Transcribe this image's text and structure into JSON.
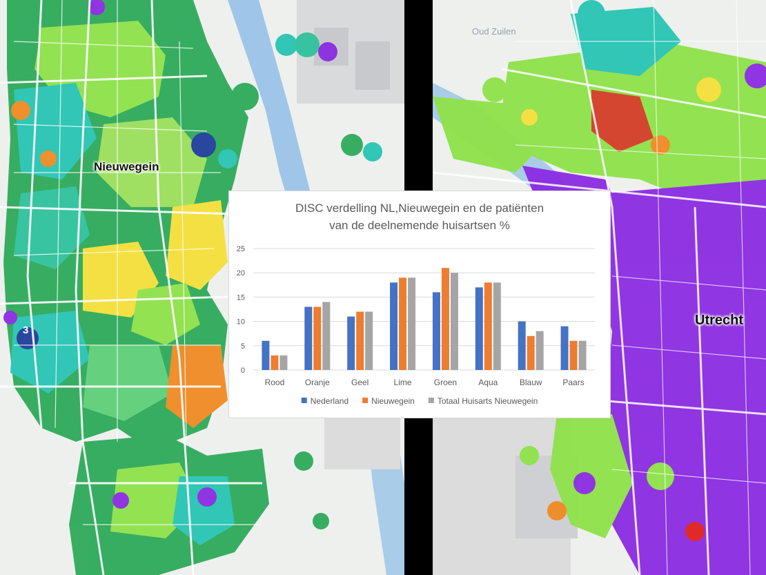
{
  "maps": {
    "left": {
      "city_label": "Nieuwegein",
      "marker_label": "3"
    },
    "right": {
      "city_label": "Utrecht",
      "district_label": "Oud Zuilen"
    }
  },
  "colors": {
    "nederland": "#4472C4",
    "nieuwegein": "#ED7D31",
    "totaal": "#A5A5A5",
    "map_green": "#2EAA5A",
    "map_lime": "#8FE24A",
    "map_aqua": "#27C4B4",
    "map_yellow": "#F5E03A",
    "map_orange": "#F08A24",
    "map_purple": "#8A2BE2",
    "map_red": "#E02020",
    "map_blue": "#1F3F9A"
  },
  "chart_data": {
    "type": "bar",
    "title_line1": "DISC verdelling NL,Nieuwegein en de patiënten",
    "title_line2": "van de deelnemende huisartsen %",
    "categories": [
      "Rood",
      "Oranje",
      "Geel",
      "Lime",
      "Groen",
      "Aqua",
      "Blauw",
      "Paars"
    ],
    "series": [
      {
        "name": "Nederland",
        "values": [
          6,
          13,
          11,
          18,
          16,
          17,
          10,
          9
        ]
      },
      {
        "name": "Nieuwegein",
        "values": [
          3,
          13,
          12,
          19,
          21,
          18,
          7,
          6
        ]
      },
      {
        "name": "Totaal Huisarts Nieuwegein",
        "values": [
          3,
          14,
          12,
          19,
          20,
          18,
          8,
          6
        ]
      }
    ],
    "yticks": [
      "0",
      "5",
      "10",
      "15",
      "20",
      "25"
    ],
    "ylim": [
      0,
      25
    ],
    "grid": true,
    "legend_position": "bottom"
  }
}
